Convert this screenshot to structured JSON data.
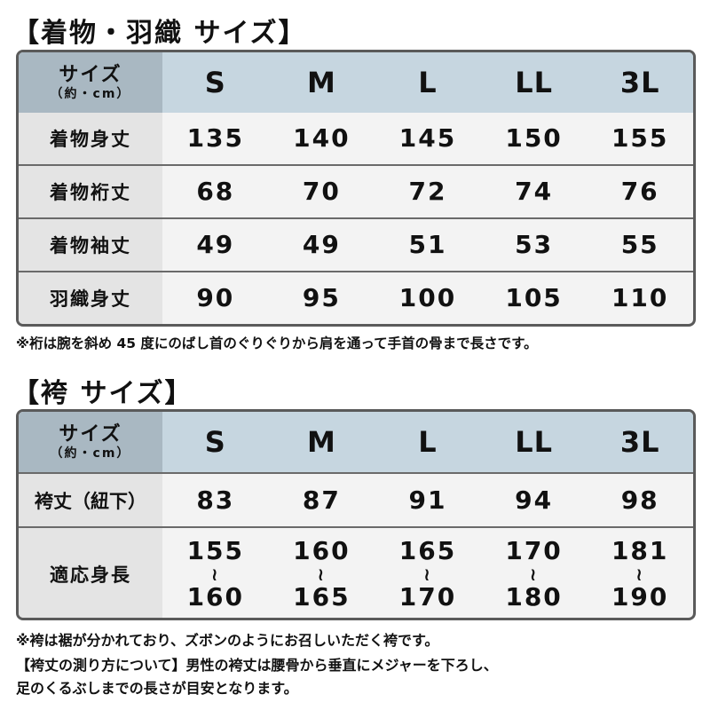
{
  "kimono": {
    "title": "【着物・羽織 サイズ】",
    "header_label": "サイズ",
    "header_unit": "（約・cm）",
    "sizes": [
      "S",
      "M",
      "L",
      "LL",
      "3L"
    ],
    "rows": [
      {
        "label": "着物身丈",
        "values": [
          "135",
          "140",
          "145",
          "150",
          "155"
        ]
      },
      {
        "label": "着物裄丈",
        "values": [
          "68",
          "70",
          "72",
          "74",
          "76"
        ]
      },
      {
        "label": "着物袖丈",
        "values": [
          "49",
          "49",
          "51",
          "53",
          "55"
        ]
      },
      {
        "label": "羽織身丈",
        "values": [
          "90",
          "95",
          "100",
          "105",
          "110"
        ]
      }
    ],
    "note": "※裄は腕を斜め 45 度にのばし首のぐりぐりから肩を通って手首の骨まで長さです。"
  },
  "hakama": {
    "title": "【袴 サイズ】",
    "header_label": "サイズ",
    "header_unit": "（約・cm）",
    "sizes": [
      "S",
      "M",
      "L",
      "LL",
      "3L"
    ],
    "length_row": {
      "label": "袴丈（紐下）",
      "values": [
        "83",
        "87",
        "91",
        "94",
        "98"
      ]
    },
    "height_row": {
      "label": "適応身長",
      "tilde": "≀",
      "ranges": [
        [
          "155",
          "160"
        ],
        [
          "160",
          "165"
        ],
        [
          "165",
          "170"
        ],
        [
          "170",
          "180"
        ],
        [
          "181",
          "190"
        ]
      ]
    },
    "notes": [
      "※袴は裾が分かれており、ズボンのようにお召しいただく袴です。",
      "【袴丈の測り方について】男性の袴丈は腰骨から垂直にメジャーを下ろし、",
      "足のくるぶしまでの長さが目安となります。"
    ]
  },
  "colors": {
    "header_label": "#a9b8c2",
    "header": "#c6d6e0",
    "row_label": "#e4e4e4",
    "cell": "#f3f3f3",
    "border": "#5a5a5a"
  }
}
